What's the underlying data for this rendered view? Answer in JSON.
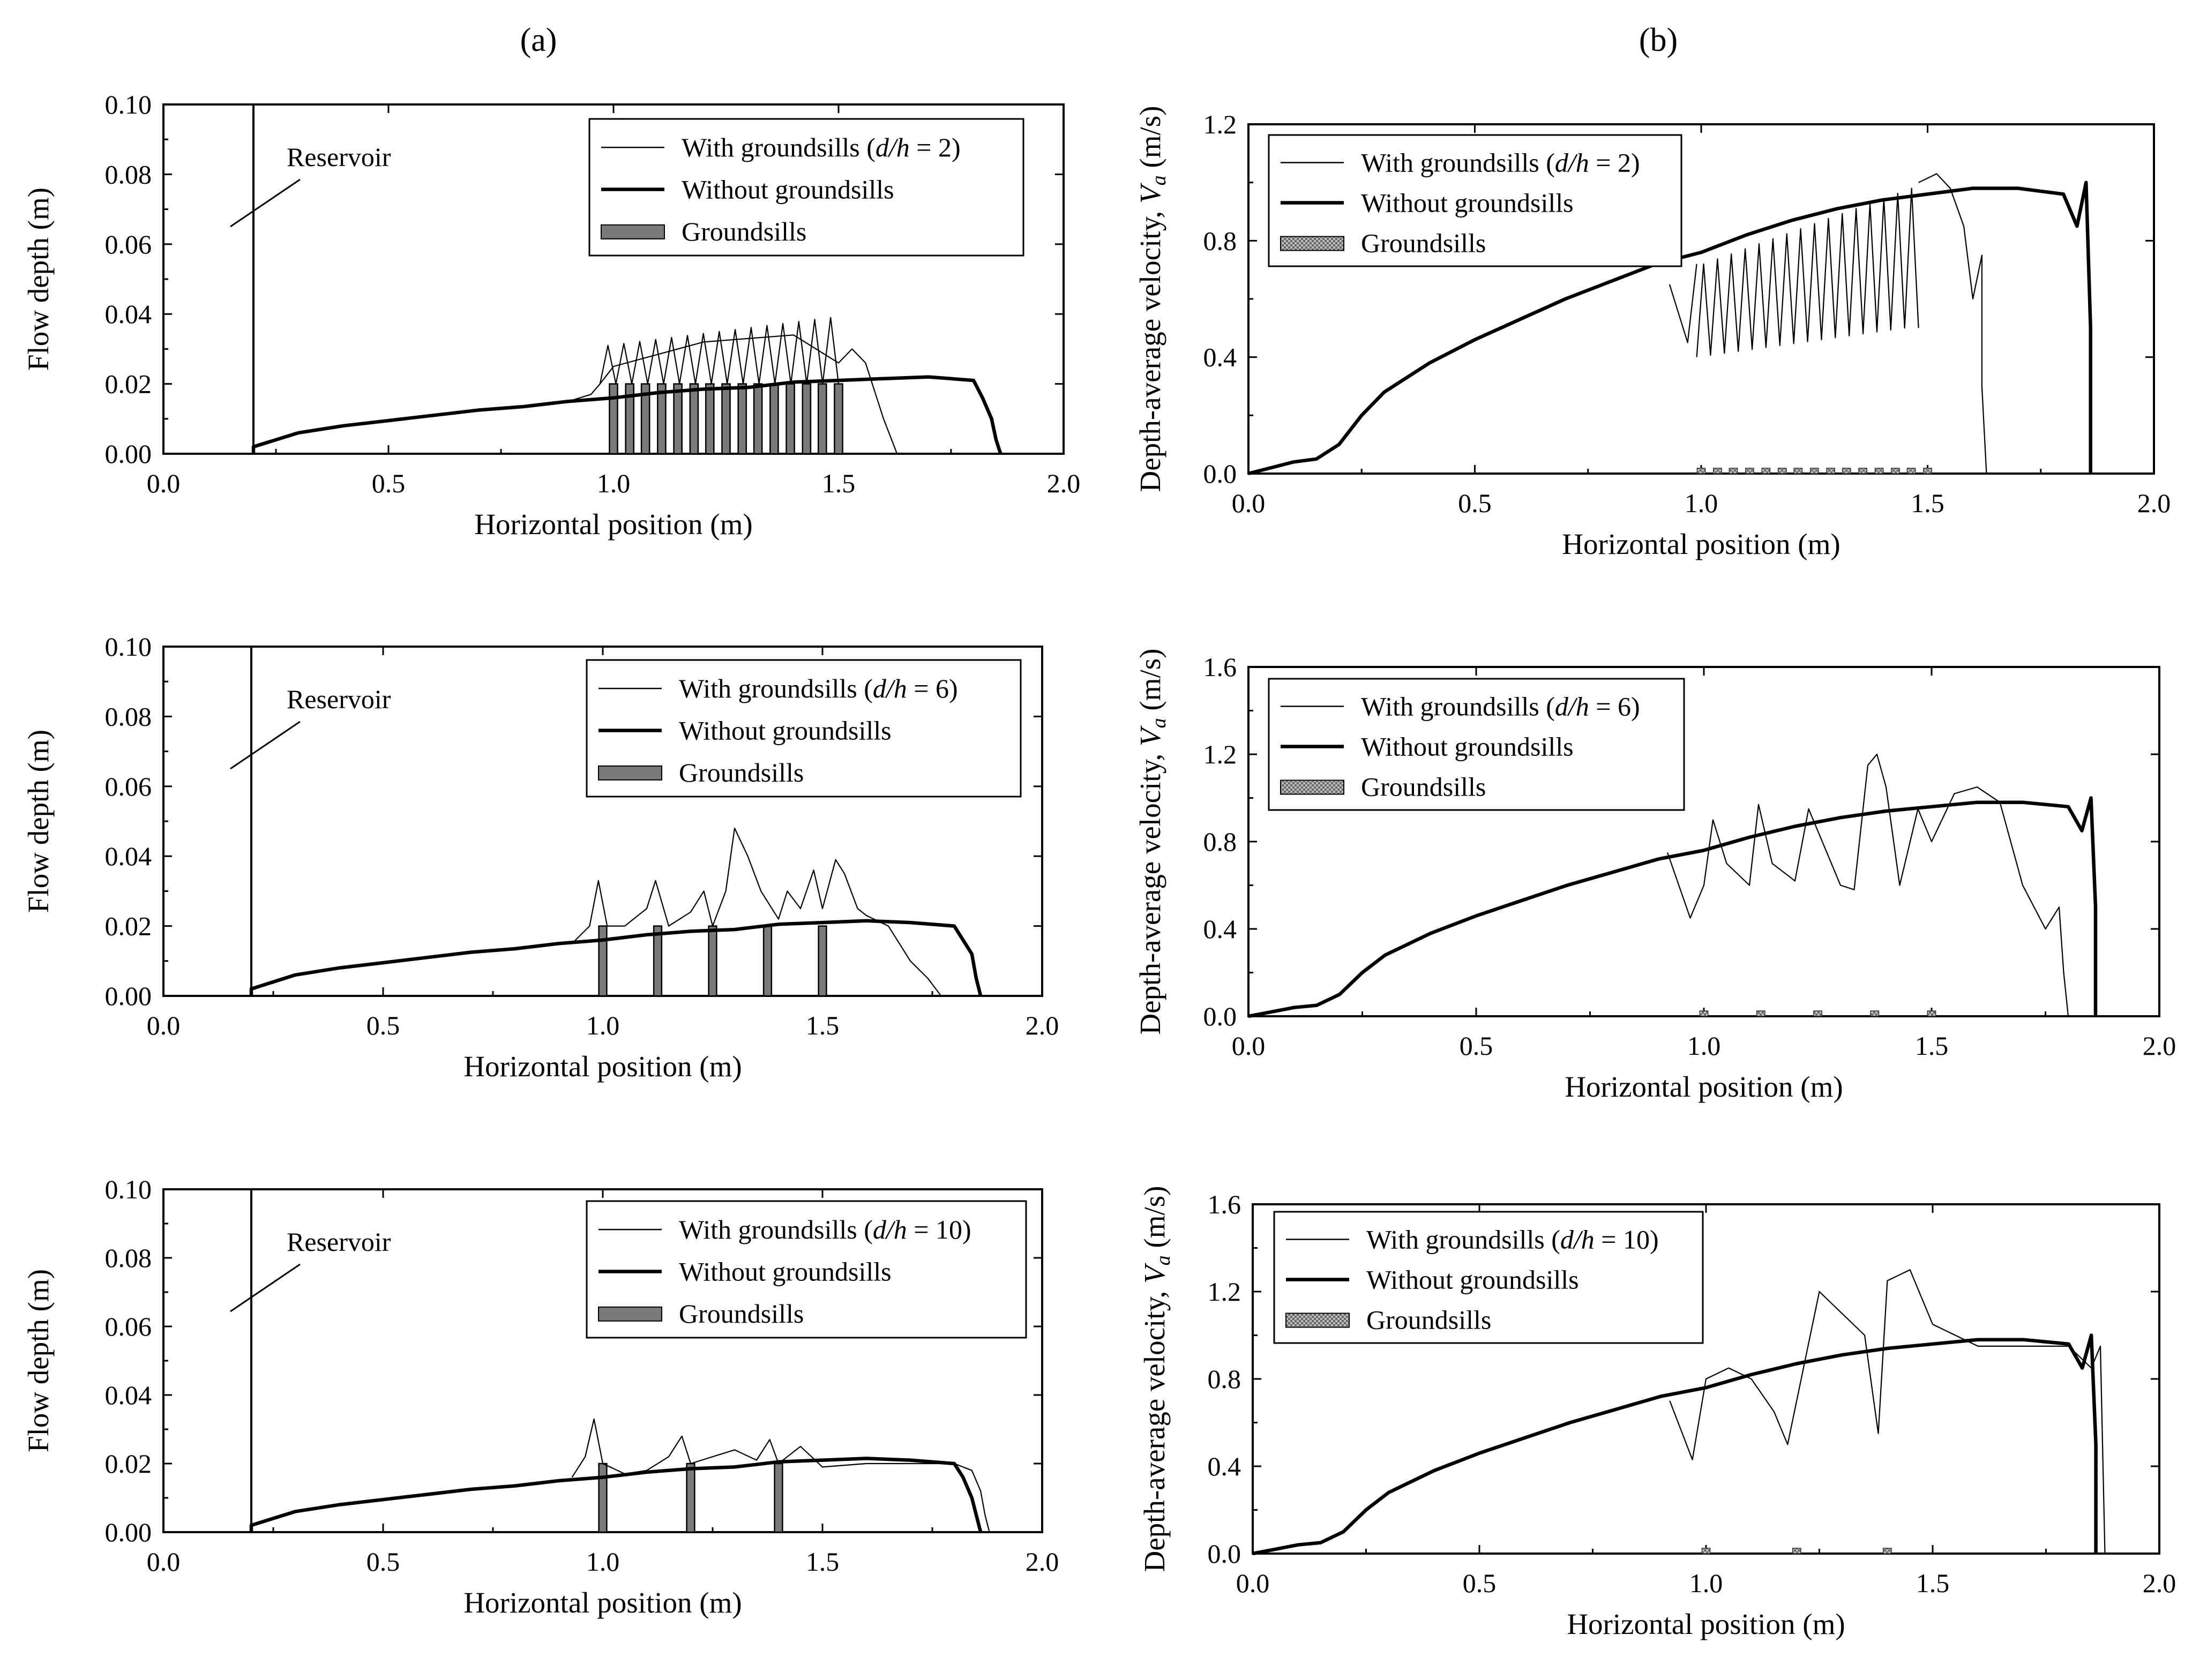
{
  "figure": {
    "panel_labels": [
      "(a)",
      "(b)"
    ],
    "colors": {
      "line": "#000000",
      "sill": "#7a7a7a",
      "sill_pattern": "#9a9a9a"
    }
  },
  "chart_data": [
    {
      "id": "a1",
      "type": "line",
      "column": "a",
      "xlabel": "Horizontal position (m)",
      "ylabel": "Flow depth (m)",
      "xlim": [
        0,
        2
      ],
      "ylim": [
        0,
        0.1
      ],
      "xticks": [
        "0.0",
        "0.5",
        "1.0",
        "1.5",
        "2.0"
      ],
      "yticks": [
        "0.00",
        "0.02",
        "0.04",
        "0.06",
        "0.08",
        "0.10"
      ],
      "annotation": "Reservoir",
      "reservoir_x": 0.2,
      "legend": [
        "With groundsills (d/h = 2)",
        "Without groundsills",
        "Groundsills"
      ],
      "series": [
        {
          "name": "Without groundsills",
          "x": [
            0.2,
            0.2,
            0.3,
            0.4,
            0.5,
            0.6,
            0.7,
            0.8,
            0.9,
            1.0,
            1.1,
            1.2,
            1.3,
            1.4,
            1.5,
            1.6,
            1.7,
            1.8,
            1.82,
            1.84,
            1.85,
            1.86
          ],
          "y": [
            0,
            0.002,
            0.006,
            0.008,
            0.0095,
            0.011,
            0.0125,
            0.0135,
            0.015,
            0.016,
            0.0175,
            0.0185,
            0.019,
            0.0205,
            0.021,
            0.0215,
            0.022,
            0.021,
            0.016,
            0.01,
            0.004,
            0
          ]
        },
        {
          "name": "With groundsills (d/h = 2)",
          "x": [
            0.9,
            0.95,
            0.97,
            1.0,
            1.2,
            1.4,
            1.5,
            1.53,
            1.56,
            1.6,
            1.63
          ],
          "y": [
            0.015,
            0.017,
            0.02,
            0.025,
            0.032,
            0.034,
            0.026,
            0.03,
            0.026,
            0.01,
            0
          ]
        }
      ],
      "oscillation": {
        "x_start": 0.97,
        "x_end": 1.5,
        "count": 15,
        "low": 0.02,
        "high_start": 0.031,
        "high_end": 0.039
      },
      "groundsills": {
        "x": [
          1.0,
          1.036,
          1.071,
          1.107,
          1.143,
          1.179,
          1.214,
          1.25,
          1.286,
          1.321,
          1.357,
          1.393,
          1.429,
          1.464,
          1.5
        ],
        "height": 0.02,
        "width": 0.018
      }
    },
    {
      "id": "a2",
      "type": "line",
      "column": "a",
      "xlabel": "Horizontal position (m)",
      "ylabel": "Flow depth (m)",
      "xlim": [
        0,
        2
      ],
      "ylim": [
        0,
        0.1
      ],
      "xticks": [
        "0.0",
        "0.5",
        "1.0",
        "1.5",
        "2.0"
      ],
      "yticks": [
        "0.00",
        "0.02",
        "0.04",
        "0.06",
        "0.08",
        "0.10"
      ],
      "annotation": "Reservoir",
      "reservoir_x": 0.2,
      "legend": [
        "With groundsills (d/h = 6)",
        "Without groundsills",
        "Groundsills"
      ],
      "series": [
        {
          "name": "Without groundsills",
          "x": [
            0.2,
            0.2,
            0.3,
            0.4,
            0.5,
            0.6,
            0.7,
            0.8,
            0.9,
            1.0,
            1.1,
            1.2,
            1.3,
            1.4,
            1.5,
            1.6,
            1.7,
            1.8,
            1.82,
            1.84,
            1.85,
            1.86
          ],
          "y": [
            0,
            0.002,
            0.006,
            0.008,
            0.0095,
            0.011,
            0.0125,
            0.0135,
            0.015,
            0.016,
            0.0175,
            0.0185,
            0.019,
            0.0205,
            0.021,
            0.0215,
            0.021,
            0.02,
            0.016,
            0.012,
            0.005,
            0
          ]
        },
        {
          "name": "With groundsills (d/h = 6)",
          "x": [
            0.93,
            0.97,
            0.99,
            1.01,
            1.05,
            1.1,
            1.12,
            1.15,
            1.2,
            1.23,
            1.25,
            1.28,
            1.3,
            1.33,
            1.36,
            1.4,
            1.42,
            1.45,
            1.48,
            1.5,
            1.53,
            1.55,
            1.58,
            1.6,
            1.65,
            1.7,
            1.74,
            1.77
          ],
          "y": [
            0.015,
            0.02,
            0.033,
            0.02,
            0.02,
            0.025,
            0.033,
            0.02,
            0.024,
            0.03,
            0.02,
            0.03,
            0.048,
            0.04,
            0.03,
            0.022,
            0.03,
            0.025,
            0.036,
            0.025,
            0.039,
            0.035,
            0.025,
            0.023,
            0.02,
            0.01,
            0.005,
            0
          ]
        }
      ],
      "groundsills": {
        "x": [
          1.0,
          1.125,
          1.25,
          1.375,
          1.5
        ],
        "height": 0.02,
        "width": 0.018
      }
    },
    {
      "id": "a3",
      "type": "line",
      "column": "a",
      "xlabel": "Horizontal position (m)",
      "ylabel": "Flow depth (m)",
      "xlim": [
        0,
        2
      ],
      "ylim": [
        0,
        0.1
      ],
      "xticks": [
        "0.0",
        "0.5",
        "1.0",
        "1.5",
        "2.0"
      ],
      "yticks": [
        "0.00",
        "0.02",
        "0.04",
        "0.06",
        "0.08",
        "0.10"
      ],
      "annotation": "Reservoir",
      "reservoir_x": 0.2,
      "legend": [
        "With groundsills (d/h = 10)",
        "Without groundsills",
        "Groundsills"
      ],
      "series": [
        {
          "name": "Without groundsills",
          "x": [
            0.2,
            0.2,
            0.3,
            0.4,
            0.5,
            0.6,
            0.7,
            0.8,
            0.9,
            1.0,
            1.1,
            1.2,
            1.3,
            1.4,
            1.5,
            1.6,
            1.7,
            1.8,
            1.82,
            1.84,
            1.85,
            1.86
          ],
          "y": [
            0,
            0.002,
            0.006,
            0.008,
            0.0095,
            0.011,
            0.0125,
            0.0135,
            0.015,
            0.016,
            0.0175,
            0.0185,
            0.019,
            0.0205,
            0.021,
            0.0215,
            0.021,
            0.02,
            0.016,
            0.01,
            0.005,
            0
          ]
        },
        {
          "name": "With groundsills (d/h = 10)",
          "x": [
            0.93,
            0.96,
            0.98,
            1.0,
            1.05,
            1.1,
            1.15,
            1.18,
            1.2,
            1.25,
            1.3,
            1.35,
            1.38,
            1.4,
            1.45,
            1.5,
            1.6,
            1.7,
            1.8,
            1.84,
            1.86,
            1.87,
            1.88
          ],
          "y": [
            0.016,
            0.022,
            0.033,
            0.02,
            0.017,
            0.018,
            0.022,
            0.028,
            0.02,
            0.022,
            0.024,
            0.021,
            0.027,
            0.02,
            0.025,
            0.019,
            0.02,
            0.02,
            0.02,
            0.018,
            0.012,
            0.005,
            0
          ]
        }
      ],
      "groundsills": {
        "x": [
          1.0,
          1.2,
          1.4
        ],
        "height": 0.02,
        "width": 0.018
      }
    },
    {
      "id": "b1",
      "type": "line",
      "column": "b",
      "xlabel": "Horizontal position (m)",
      "ylabel": "Depth-average velocity, Va (m/s)",
      "xlim": [
        0,
        2
      ],
      "ylim": [
        0,
        1.2
      ],
      "xticks": [
        "0.0",
        "0.5",
        "1.0",
        "1.5",
        "2.0"
      ],
      "yticks": [
        "0.0",
        "0.4",
        "0.8",
        "1.2"
      ],
      "legend": [
        "With groundsills (d/h = 2)",
        "Without groundsills",
        "Groundsills"
      ],
      "series": [
        {
          "name": "Without groundsills",
          "x": [
            0.0,
            0.05,
            0.1,
            0.15,
            0.2,
            0.25,
            0.3,
            0.4,
            0.5,
            0.6,
            0.7,
            0.8,
            0.9,
            1.0,
            1.1,
            1.2,
            1.3,
            1.4,
            1.5,
            1.6,
            1.7,
            1.8,
            1.83,
            1.85,
            1.86,
            1.86
          ],
          "y": [
            0.0,
            0.02,
            0.04,
            0.05,
            0.1,
            0.2,
            0.28,
            0.38,
            0.46,
            0.53,
            0.6,
            0.66,
            0.72,
            0.76,
            0.82,
            0.87,
            0.91,
            0.94,
            0.96,
            0.98,
            0.98,
            0.96,
            0.85,
            1.0,
            0.5,
            0.0
          ]
        },
        {
          "name": "With groundsills (d/h = 2)",
          "x": [
            0.93,
            0.97,
            0.99
          ],
          "y": [
            0.65,
            0.45,
            0.72
          ]
        },
        {
          "name": "With groundsills (d/h = 2) tail",
          "x": [
            1.48,
            1.52,
            1.55,
            1.58,
            1.6,
            1.62,
            1.62,
            1.63
          ],
          "y": [
            1.0,
            1.03,
            0.98,
            0.85,
            0.6,
            0.75,
            0.3,
            0.0
          ]
        }
      ],
      "oscillation": {
        "x_start": 0.99,
        "x_end": 1.48,
        "count": 16,
        "low_start": 0.4,
        "low_end": 0.5,
        "high_start": 0.72,
        "high_end": 0.98
      },
      "groundsills": {
        "x": [
          1.0,
          1.036,
          1.071,
          1.107,
          1.143,
          1.179,
          1.214,
          1.25,
          1.286,
          1.321,
          1.357,
          1.393,
          1.429,
          1.464,
          1.5
        ],
        "height": 0.02,
        "width": 0.018
      }
    },
    {
      "id": "b2",
      "type": "line",
      "column": "b",
      "xlabel": "Horizontal position (m)",
      "ylabel": "Depth-average velocity, Va (m/s)",
      "xlim": [
        0,
        2
      ],
      "ylim": [
        0,
        1.6
      ],
      "xticks": [
        "0.0",
        "0.5",
        "1.0",
        "1.5",
        "2.0"
      ],
      "yticks": [
        "0.0",
        "0.4",
        "0.8",
        "1.2",
        "1.6"
      ],
      "legend": [
        "With groundsills (d/h = 6)",
        "Without groundsills",
        "Groundsills"
      ],
      "series": [
        {
          "name": "Without groundsills",
          "x": [
            0.0,
            0.05,
            0.1,
            0.15,
            0.2,
            0.25,
            0.3,
            0.4,
            0.5,
            0.6,
            0.7,
            0.8,
            0.9,
            1.0,
            1.1,
            1.2,
            1.3,
            1.4,
            1.5,
            1.6,
            1.7,
            1.8,
            1.83,
            1.85,
            1.86,
            1.86
          ],
          "y": [
            0.0,
            0.02,
            0.04,
            0.05,
            0.1,
            0.2,
            0.28,
            0.38,
            0.46,
            0.53,
            0.6,
            0.66,
            0.72,
            0.76,
            0.82,
            0.87,
            0.91,
            0.94,
            0.96,
            0.98,
            0.98,
            0.96,
            0.85,
            1.0,
            0.5,
            0.0
          ]
        },
        {
          "name": "With groundsills (d/h = 6)",
          "x": [
            0.92,
            0.97,
            1.0,
            1.02,
            1.05,
            1.1,
            1.12,
            1.15,
            1.2,
            1.23,
            1.27,
            1.3,
            1.33,
            1.36,
            1.38,
            1.4,
            1.43,
            1.47,
            1.5,
            1.55,
            1.6,
            1.65,
            1.7,
            1.75,
            1.78,
            1.79,
            1.8
          ],
          "y": [
            0.75,
            0.45,
            0.6,
            0.9,
            0.7,
            0.6,
            0.97,
            0.7,
            0.62,
            0.95,
            0.75,
            0.6,
            0.58,
            1.15,
            1.2,
            1.05,
            0.6,
            0.95,
            0.8,
            1.02,
            1.05,
            0.98,
            0.6,
            0.4,
            0.5,
            0.2,
            0.0
          ]
        }
      ],
      "groundsills": {
        "x": [
          1.0,
          1.125,
          1.25,
          1.375,
          1.5
        ],
        "height": 0.02,
        "width": 0.018
      }
    },
    {
      "id": "b3",
      "type": "line",
      "column": "b",
      "xlabel": "Horizontal position (m)",
      "ylabel": "Depth-average velocity, Va (m/s)",
      "xlim": [
        0,
        2
      ],
      "ylim": [
        0,
        1.6
      ],
      "xticks": [
        "0.0",
        "0.5",
        "1.0",
        "1.5",
        "2.0"
      ],
      "yticks": [
        "0.0",
        "0.4",
        "0.8",
        "1.2",
        "1.6"
      ],
      "legend": [
        "With groundsills (d/h = 10)",
        "Without groundsills",
        "Groundsills"
      ],
      "series": [
        {
          "name": "Without groundsills",
          "x": [
            0.0,
            0.05,
            0.1,
            0.15,
            0.2,
            0.25,
            0.3,
            0.4,
            0.5,
            0.6,
            0.7,
            0.8,
            0.9,
            1.0,
            1.1,
            1.2,
            1.3,
            1.4,
            1.5,
            1.6,
            1.7,
            1.8,
            1.83,
            1.85,
            1.86,
            1.86
          ],
          "y": [
            0.0,
            0.02,
            0.04,
            0.05,
            0.1,
            0.2,
            0.28,
            0.38,
            0.46,
            0.53,
            0.6,
            0.66,
            0.72,
            0.76,
            0.82,
            0.87,
            0.91,
            0.94,
            0.96,
            0.98,
            0.98,
            0.96,
            0.85,
            1.0,
            0.5,
            0.0
          ]
        },
        {
          "name": "With groundsills (d/h = 10)",
          "x": [
            0.92,
            0.97,
            1.0,
            1.05,
            1.1,
            1.15,
            1.18,
            1.22,
            1.25,
            1.3,
            1.35,
            1.38,
            1.4,
            1.45,
            1.5,
            1.6,
            1.7,
            1.8,
            1.85,
            1.87,
            1.88
          ],
          "y": [
            0.7,
            0.43,
            0.8,
            0.85,
            0.8,
            0.65,
            0.5,
            0.9,
            1.2,
            1.1,
            1.0,
            0.55,
            1.25,
            1.3,
            1.05,
            0.95,
            0.95,
            0.95,
            0.85,
            0.95,
            0.0
          ]
        }
      ],
      "groundsills": {
        "x": [
          1.0,
          1.2,
          1.4
        ],
        "height": 0.02,
        "width": 0.018
      }
    }
  ]
}
